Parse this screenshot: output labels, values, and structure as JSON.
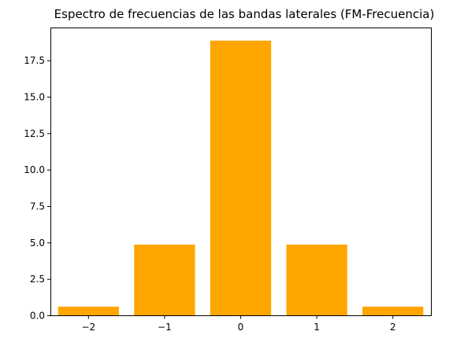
{
  "chart_data": {
    "type": "bar",
    "title": "Espectro de frecuencias de las bandas laterales (FM-Frecuencia)",
    "xlabel": "",
    "ylabel": "",
    "categories": [
      "−2",
      "−1",
      "0",
      "1",
      "2"
    ],
    "x": [
      -2,
      -1,
      0,
      1,
      2
    ],
    "values": [
      0.6,
      4.85,
      18.85,
      4.85,
      0.6
    ],
    "bar_width": 0.8,
    "xlim": [
      -2.5,
      2.5
    ],
    "ylim": [
      0,
      19.75
    ],
    "yticks": [
      0,
      2.5,
      5,
      7.5,
      10,
      12.5,
      15,
      17.5
    ],
    "ytick_labels": [
      "0.0",
      "2.5",
      "5.0",
      "7.5",
      "10.0",
      "12.5",
      "15.0",
      "17.5"
    ],
    "grid": false,
    "legend": "none",
    "bar_color": "#ffa500"
  }
}
